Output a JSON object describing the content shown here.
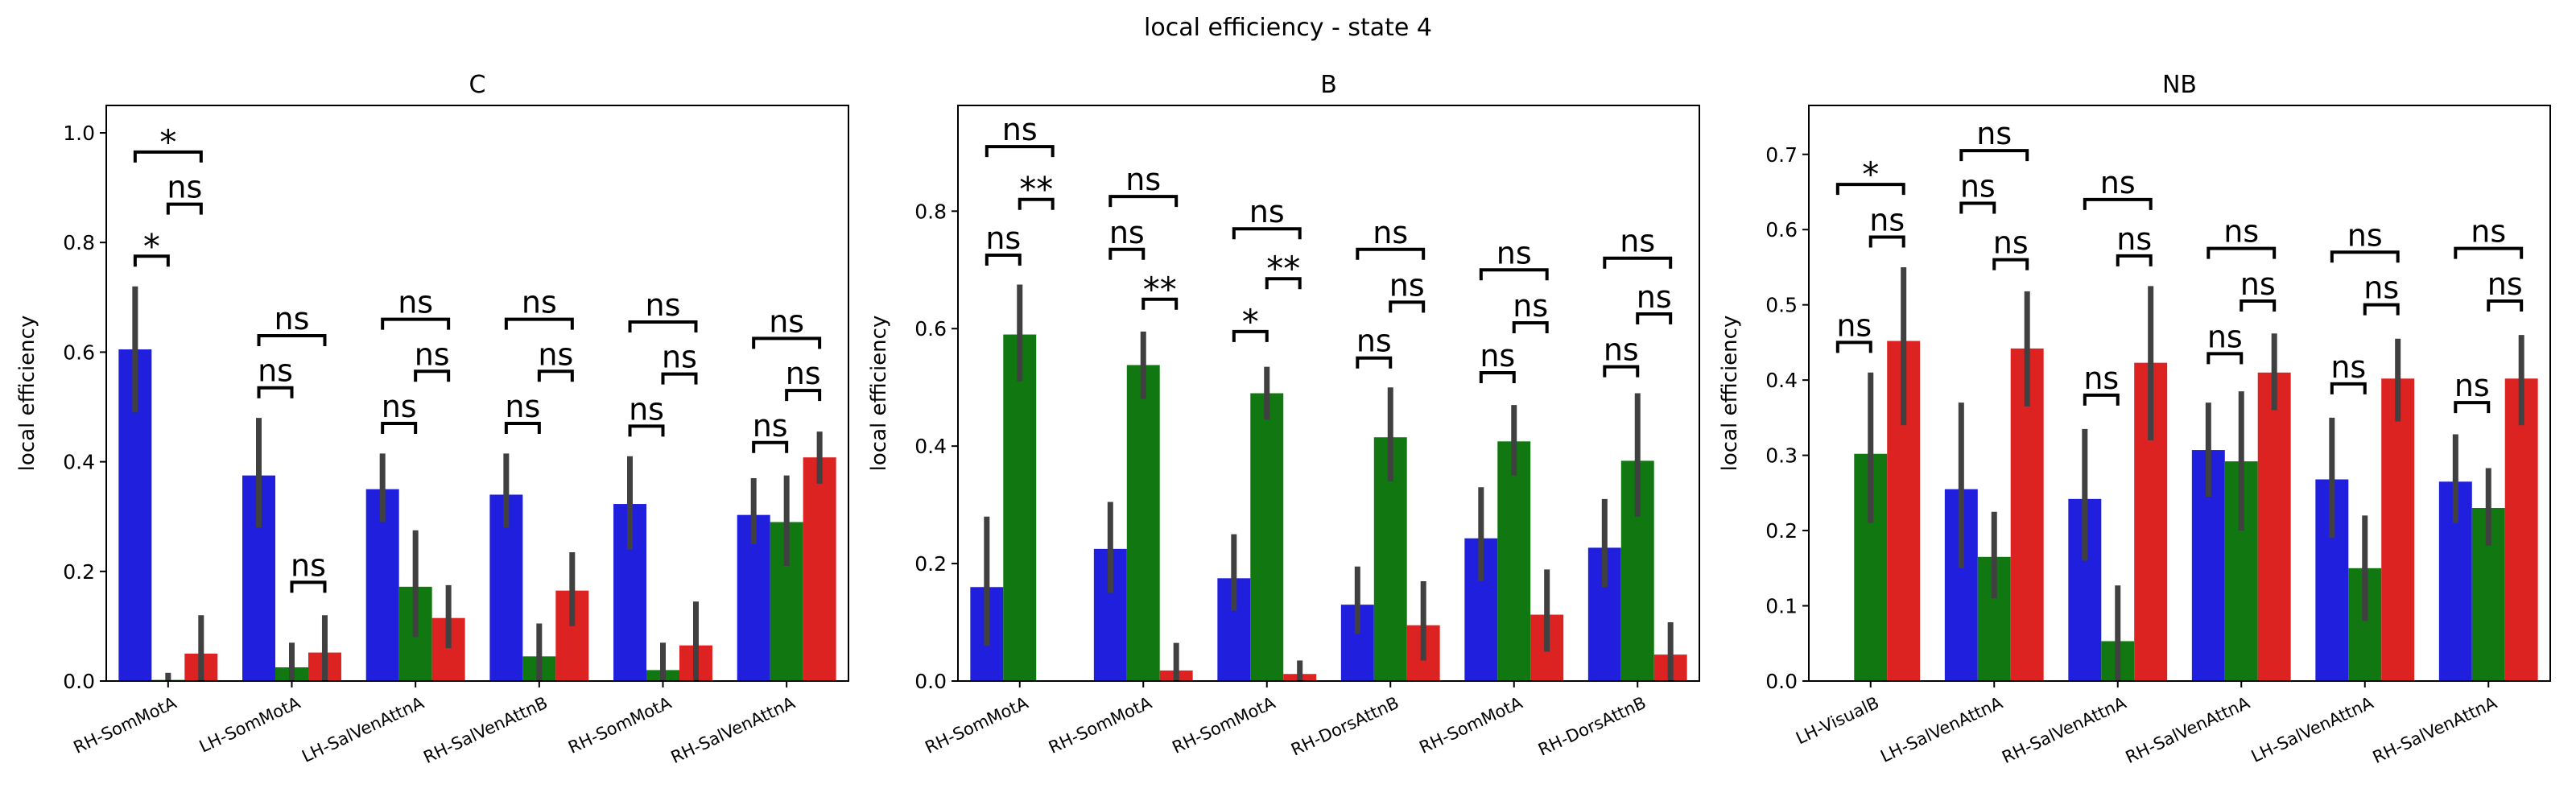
{
  "figure": {
    "title": "local efficiency - state 4"
  },
  "colors": {
    "C": "#1f1fdd",
    "B": "#117711",
    "NB": "#dd2222",
    "err": "#404040"
  },
  "chart_data": [
    {
      "type": "bar",
      "title": "C",
      "ylabel": "local efficiency",
      "ylim": [
        0,
        1.05
      ],
      "yticks": [
        "0.0",
        "0.2",
        "0.4",
        "0.6",
        "0.8",
        "1.0"
      ],
      "categories": [
        "RH-SomMotA",
        "LH-SomMotA",
        "LH-SalVenAttnA",
        "RH-SalVenAttnB",
        "RH-SomMotA",
        "RH-SalVenAttnA"
      ],
      "series": [
        {
          "values": [
            0.605,
            0.375,
            0.35,
            0.34,
            0.323,
            0.303
          ],
          "err_low": [
            0.49,
            0.28,
            0.29,
            0.28,
            0.24,
            0.25
          ],
          "err_high": [
            0.72,
            0.48,
            0.415,
            0.415,
            0.41,
            0.37
          ]
        },
        {
          "values": [
            0.002,
            0.025,
            0.172,
            0.045,
            0.02,
            0.29
          ],
          "err_low": [
            0.0,
            0.0,
            0.08,
            0.0,
            0.0,
            0.21
          ],
          "err_high": [
            0.015,
            0.07,
            0.275,
            0.105,
            0.07,
            0.375
          ]
        },
        {
          "values": [
            0.05,
            0.052,
            0.115,
            0.165,
            0.065,
            0.408
          ],
          "err_low": [
            0.0,
            0.0,
            0.06,
            0.1,
            0.0,
            0.36
          ],
          "err_high": [
            0.12,
            0.12,
            0.175,
            0.235,
            0.145,
            0.455
          ]
        }
      ],
      "annotations": [
        {
          "cat": 0,
          "from": 0,
          "to": 1,
          "y": 0.775,
          "label": "*"
        },
        {
          "cat": 0,
          "from": 1,
          "to": 2,
          "y": 0.87,
          "label": "ns"
        },
        {
          "cat": 0,
          "from": 0,
          "to": 2,
          "y": 0.965,
          "label": "*"
        },
        {
          "cat": 1,
          "from": 0,
          "to": 1,
          "y": 0.535,
          "label": "ns"
        },
        {
          "cat": 1,
          "from": 1,
          "to": 2,
          "y": 0.18,
          "label": "ns"
        },
        {
          "cat": 1,
          "from": 0,
          "to": 2,
          "y": 0.63,
          "label": "ns"
        },
        {
          "cat": 2,
          "from": 0,
          "to": 1,
          "y": 0.47,
          "label": "ns"
        },
        {
          "cat": 2,
          "from": 1,
          "to": 2,
          "y": 0.565,
          "label": "ns"
        },
        {
          "cat": 2,
          "from": 0,
          "to": 2,
          "y": 0.66,
          "label": "ns"
        },
        {
          "cat": 3,
          "from": 0,
          "to": 1,
          "y": 0.47,
          "label": "ns"
        },
        {
          "cat": 3,
          "from": 1,
          "to": 2,
          "y": 0.565,
          "label": "ns"
        },
        {
          "cat": 3,
          "from": 0,
          "to": 2,
          "y": 0.66,
          "label": "ns"
        },
        {
          "cat": 4,
          "from": 0,
          "to": 1,
          "y": 0.465,
          "label": "ns"
        },
        {
          "cat": 4,
          "from": 1,
          "to": 2,
          "y": 0.56,
          "label": "ns"
        },
        {
          "cat": 4,
          "from": 0,
          "to": 2,
          "y": 0.655,
          "label": "ns"
        },
        {
          "cat": 5,
          "from": 0,
          "to": 1,
          "y": 0.435,
          "label": "ns"
        },
        {
          "cat": 5,
          "from": 1,
          "to": 2,
          "y": 0.53,
          "label": "ns"
        },
        {
          "cat": 5,
          "from": 0,
          "to": 2,
          "y": 0.625,
          "label": "ns"
        }
      ]
    },
    {
      "type": "bar",
      "title": "B",
      "ylabel": "local efficiency",
      "ylim": [
        0,
        0.98
      ],
      "yticks": [
        "0.0",
        "0.2",
        "0.4",
        "0.6",
        "0.8"
      ],
      "categories": [
        "RH-SomMotA",
        "RH-SomMotA",
        "RH-SomMotA",
        "RH-DorsAttnB",
        "RH-SomMotA",
        "RH-DorsAttnB"
      ],
      "series": [
        {
          "values": [
            0.16,
            0.225,
            0.175,
            0.13,
            0.243,
            0.227
          ],
          "err_low": [
            0.06,
            0.15,
            0.12,
            0.08,
            0.17,
            0.16
          ],
          "err_high": [
            0.28,
            0.305,
            0.25,
            0.195,
            0.33,
            0.31
          ]
        },
        {
          "values": [
            0.59,
            0.538,
            0.49,
            0.415,
            0.408,
            0.375
          ],
          "err_low": [
            0.51,
            0.48,
            0.445,
            0.34,
            0.35,
            0.28
          ],
          "err_high": [
            0.675,
            0.595,
            0.535,
            0.5,
            0.47,
            0.49
          ]
        },
        {
          "values": [
            0.0,
            0.018,
            0.012,
            0.095,
            0.113,
            0.045
          ],
          "err_low": [
            0.0,
            0.0,
            0.0,
            0.035,
            0.05,
            0.0
          ],
          "err_high": [
            0.0,
            0.065,
            0.035,
            0.17,
            0.19,
            0.1
          ]
        }
      ],
      "annotations": [
        {
          "cat": 0,
          "from": 0,
          "to": 1,
          "y": 0.725,
          "label": "ns"
        },
        {
          "cat": 0,
          "from": 1,
          "to": 2,
          "y": 0.82,
          "label": "**"
        },
        {
          "cat": 0,
          "from": 0,
          "to": 2,
          "y": 0.91,
          "label": "ns"
        },
        {
          "cat": 1,
          "from": 0,
          "to": 1,
          "y": 0.735,
          "label": "ns"
        },
        {
          "cat": 1,
          "from": 1,
          "to": 2,
          "y": 0.65,
          "label": "**"
        },
        {
          "cat": 1,
          "from": 0,
          "to": 2,
          "y": 0.825,
          "label": "ns"
        },
        {
          "cat": 2,
          "from": 0,
          "to": 1,
          "y": 0.595,
          "label": "*"
        },
        {
          "cat": 2,
          "from": 1,
          "to": 2,
          "y": 0.685,
          "label": "**"
        },
        {
          "cat": 2,
          "from": 0,
          "to": 2,
          "y": 0.77,
          "label": "ns"
        },
        {
          "cat": 3,
          "from": 0,
          "to": 1,
          "y": 0.55,
          "label": "ns"
        },
        {
          "cat": 3,
          "from": 1,
          "to": 2,
          "y": 0.645,
          "label": "ns"
        },
        {
          "cat": 3,
          "from": 0,
          "to": 2,
          "y": 0.735,
          "label": "ns"
        },
        {
          "cat": 4,
          "from": 0,
          "to": 1,
          "y": 0.525,
          "label": "ns"
        },
        {
          "cat": 4,
          "from": 1,
          "to": 2,
          "y": 0.61,
          "label": "ns"
        },
        {
          "cat": 4,
          "from": 0,
          "to": 2,
          "y": 0.7,
          "label": "ns"
        },
        {
          "cat": 5,
          "from": 0,
          "to": 1,
          "y": 0.535,
          "label": "ns"
        },
        {
          "cat": 5,
          "from": 1,
          "to": 2,
          "y": 0.625,
          "label": "ns"
        },
        {
          "cat": 5,
          "from": 0,
          "to": 2,
          "y": 0.72,
          "label": "ns"
        }
      ]
    },
    {
      "type": "bar",
      "title": "NB",
      "ylabel": "local efficiency",
      "ylim": [
        0,
        0.765
      ],
      "yticks": [
        "0.0",
        "0.1",
        "0.2",
        "0.3",
        "0.4",
        "0.5",
        "0.6",
        "0.7"
      ],
      "categories": [
        "LH-VisualB",
        "LH-SalVenAttnA",
        "RH-SalVenAttnA",
        "RH-SalVenAttnA",
        "LH-SalVenAttnA",
        "RH-SalVenAttnA"
      ],
      "series": [
        {
          "values": [
            0.0,
            0.255,
            0.242,
            0.307,
            0.268,
            0.265
          ],
          "err_low": [
            0.0,
            0.15,
            0.16,
            0.245,
            0.19,
            0.21
          ],
          "err_high": [
            0.0,
            0.37,
            0.335,
            0.37,
            0.35,
            0.328
          ]
        },
        {
          "values": [
            0.302,
            0.165,
            0.053,
            0.292,
            0.15,
            0.23
          ],
          "err_low": [
            0.21,
            0.11,
            0.0,
            0.2,
            0.08,
            0.18
          ],
          "err_high": [
            0.41,
            0.225,
            0.127,
            0.385,
            0.22,
            0.283
          ]
        },
        {
          "values": [
            0.452,
            0.442,
            0.423,
            0.41,
            0.402,
            0.402
          ],
          "err_low": [
            0.34,
            0.365,
            0.32,
            0.36,
            0.345,
            0.34
          ],
          "err_high": [
            0.55,
            0.518,
            0.525,
            0.462,
            0.455,
            0.46
          ]
        }
      ],
      "annotations": [
        {
          "cat": 0,
          "from": 0,
          "to": 1,
          "y": 0.45,
          "label": "ns"
        },
        {
          "cat": 0,
          "from": 1,
          "to": 2,
          "y": 0.59,
          "label": "ns"
        },
        {
          "cat": 0,
          "from": 0,
          "to": 2,
          "y": 0.66,
          "label": "*"
        },
        {
          "cat": 1,
          "from": 0,
          "to": 1,
          "y": 0.635,
          "label": "ns"
        },
        {
          "cat": 1,
          "from": 1,
          "to": 2,
          "y": 0.56,
          "label": "ns"
        },
        {
          "cat": 1,
          "from": 0,
          "to": 2,
          "y": 0.705,
          "label": "ns"
        },
        {
          "cat": 2,
          "from": 0,
          "to": 1,
          "y": 0.38,
          "label": "ns"
        },
        {
          "cat": 2,
          "from": 1,
          "to": 2,
          "y": 0.565,
          "label": "ns"
        },
        {
          "cat": 2,
          "from": 0,
          "to": 2,
          "y": 0.64,
          "label": "ns"
        },
        {
          "cat": 3,
          "from": 0,
          "to": 1,
          "y": 0.435,
          "label": "ns"
        },
        {
          "cat": 3,
          "from": 1,
          "to": 2,
          "y": 0.505,
          "label": "ns"
        },
        {
          "cat": 3,
          "from": 0,
          "to": 2,
          "y": 0.575,
          "label": "ns"
        },
        {
          "cat": 4,
          "from": 0,
          "to": 1,
          "y": 0.395,
          "label": "ns"
        },
        {
          "cat": 4,
          "from": 1,
          "to": 2,
          "y": 0.5,
          "label": "ns"
        },
        {
          "cat": 4,
          "from": 0,
          "to": 2,
          "y": 0.57,
          "label": "ns"
        },
        {
          "cat": 5,
          "from": 0,
          "to": 1,
          "y": 0.37,
          "label": "ns"
        },
        {
          "cat": 5,
          "from": 1,
          "to": 2,
          "y": 0.505,
          "label": "ns"
        },
        {
          "cat": 5,
          "from": 0,
          "to": 2,
          "y": 0.575,
          "label": "ns"
        }
      ]
    }
  ]
}
